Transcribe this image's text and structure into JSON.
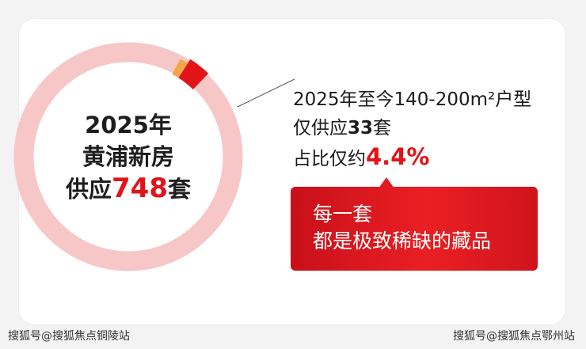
{
  "chart_data": {
    "type": "pie",
    "style": "donut",
    "slices": [
      {
        "label": "",
        "value": 715,
        "color": "#f7c7c7"
      },
      {
        "label": "2025年至今140-200m²户型",
        "value": 33,
        "color": "#e2141a"
      }
    ],
    "total": 748,
    "center": {
      "line1": "2025年",
      "line2": "黄浦新房",
      "line3_prefix": "供应",
      "line3_num": "748",
      "line3_suffix": "套"
    },
    "annotation": {
      "row1": "2025年至今140-200m²户型",
      "row2_prefix": "仅供应",
      "row2_num": "33",
      "row2_suffix": "套",
      "row3_prefix": "占比仅约",
      "row3_pct": "4.4%"
    },
    "callout": {
      "line1": "每一套",
      "line2": "都是极致稀缺的藏品"
    }
  },
  "colors": {
    "accent": "#e2141a",
    "ring": "#f7c7c7",
    "highlight_slice_edge": "#f2a64a"
  },
  "watermarks": {
    "left": "搜狐号@搜狐焦点铜陵站",
    "right": "搜狐号@搜狐焦点鄂州站"
  }
}
